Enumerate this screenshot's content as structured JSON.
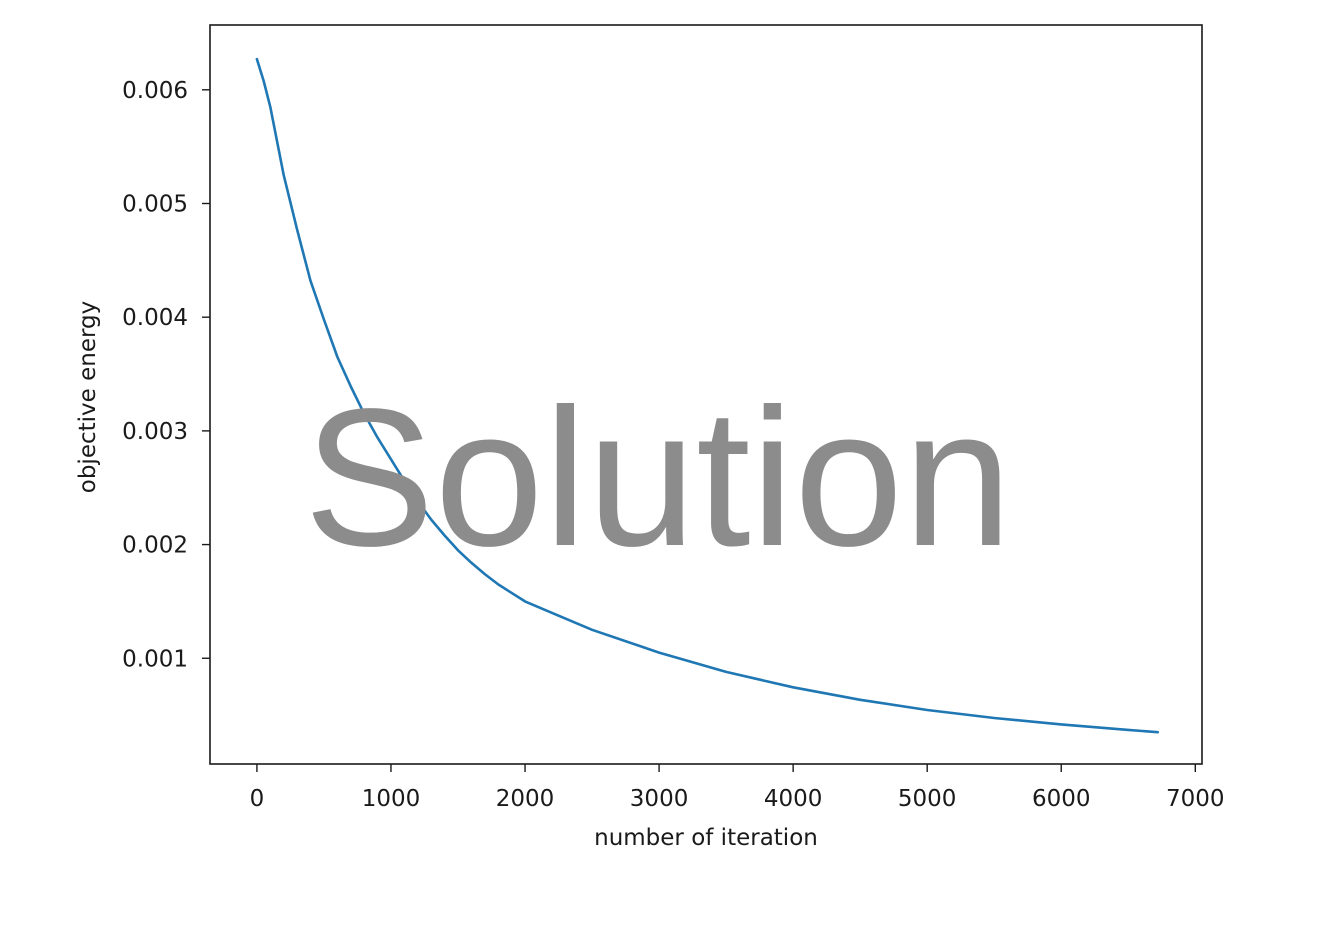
{
  "chart_data": {
    "type": "line",
    "title": "",
    "xlabel": "number of iteration",
    "ylabel": "objective energy",
    "xlim": [
      -350,
      7050
    ],
    "ylim": [
      7e-05,
      0.00657
    ],
    "xticks": [
      0,
      1000,
      2000,
      3000,
      4000,
      5000,
      6000,
      7000
    ],
    "xtick_labels": [
      "0",
      "1000",
      "2000",
      "3000",
      "4000",
      "5000",
      "6000",
      "7000"
    ],
    "yticks": [
      0.001,
      0.002,
      0.003,
      0.004,
      0.005,
      0.006
    ],
    "ytick_labels": [
      "0.001",
      "0.002",
      "0.003",
      "0.004",
      "0.005",
      "0.006"
    ],
    "grid": false,
    "legend": "none",
    "series": [
      {
        "color": "#1f77b4",
        "x": [
          0,
          50,
          100,
          200,
          300,
          400,
          500,
          600,
          700,
          800,
          900,
          1000,
          1100,
          1200,
          1300,
          1400,
          1500,
          1600,
          1700,
          1800,
          2000,
          2200,
          2500,
          3000,
          3500,
          4000,
          4500,
          5000,
          5500,
          6000,
          6500,
          6720
        ],
        "y": [
          0.00627,
          0.00608,
          0.00585,
          0.00525,
          0.00477,
          0.00432,
          0.00398,
          0.00365,
          0.00339,
          0.00315,
          0.00294,
          0.00275,
          0.00256,
          0.00238,
          0.00222,
          0.00208,
          0.00195,
          0.00184,
          0.00174,
          0.00165,
          0.0015,
          0.0014,
          0.00125,
          0.00105,
          0.00088,
          0.000745,
          0.000635,
          0.000545,
          0.000475,
          0.000418,
          0.00037,
          0.00035
        ]
      }
    ],
    "annotations": [
      "Solution"
    ]
  }
}
